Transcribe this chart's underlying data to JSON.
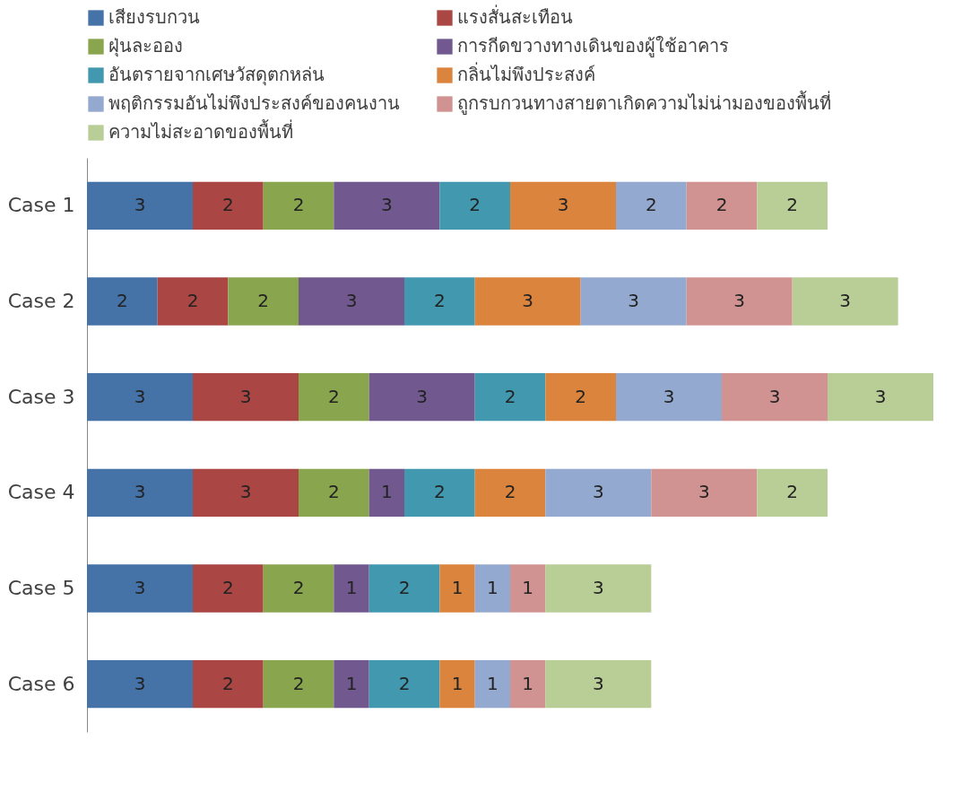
{
  "chart_data": {
    "type": "bar",
    "orientation": "horizontal",
    "stacked": true,
    "data_labels": true,
    "legend": "top",
    "grid": false,
    "categories": [
      "Case 1",
      "Case 2",
      "Case 3",
      "Case 4",
      "Case 5",
      "Case 6"
    ],
    "series": [
      {
        "name": "เสียงรบกวน",
        "color": "#4572a7",
        "values": [
          3,
          2,
          3,
          3,
          3,
          3
        ]
      },
      {
        "name": "แรงสั่นสะเทือน",
        "color": "#aa4643",
        "values": [
          2,
          2,
          3,
          3,
          2,
          2
        ]
      },
      {
        "name": "ฝุ่นละออง",
        "color": "#89a54e",
        "values": [
          2,
          2,
          2,
          2,
          2,
          2
        ]
      },
      {
        "name": "การกีดขวางทางเดินของผู้ใช้อาคาร",
        "color": "#71588f",
        "values": [
          3,
          3,
          3,
          1,
          1,
          1
        ]
      },
      {
        "name": "อันตรายจากเศษวัสดุตกหล่น",
        "color": "#4198af",
        "values": [
          2,
          2,
          2,
          2,
          2,
          2
        ]
      },
      {
        "name": "กลิ่นไม่พึงประสงค์",
        "color": "#db843d",
        "values": [
          3,
          3,
          2,
          2,
          1,
          1
        ]
      },
      {
        "name": "พฤติกรรมอันไม่พึงประสงค์ของคนงาน",
        "color": "#93a9cf",
        "values": [
          2,
          3,
          3,
          3,
          1,
          1
        ]
      },
      {
        "name": "ถูกรบกวนทางสายตาเกิดความไม่น่ามองของพื้นที่",
        "color": "#d19392",
        "values": [
          2,
          3,
          3,
          3,
          1,
          1
        ]
      },
      {
        "name": "ความไม่สะอาดของพื้นที่",
        "color": "#b9cd96",
        "values": [
          2,
          3,
          3,
          2,
          3,
          3
        ]
      }
    ]
  }
}
